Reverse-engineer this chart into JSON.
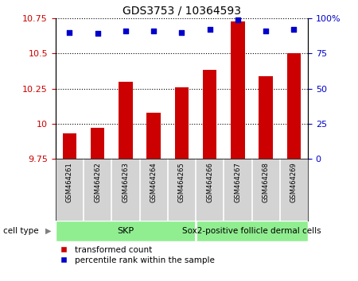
{
  "title": "GDS3753 / 10364593",
  "samples": [
    "GSM464261",
    "GSM464262",
    "GSM464263",
    "GSM464264",
    "GSM464265",
    "GSM464266",
    "GSM464267",
    "GSM464268",
    "GSM464269"
  ],
  "transformed_counts": [
    9.93,
    9.97,
    10.3,
    10.08,
    10.26,
    10.38,
    10.73,
    10.34,
    10.5
  ],
  "percentile_ranks": [
    90,
    89,
    91,
    91,
    90,
    92,
    99,
    91,
    92
  ],
  "ylim_left": [
    9.75,
    10.75
  ],
  "ylim_right": [
    0,
    100
  ],
  "yticks_left": [
    9.75,
    10.0,
    10.25,
    10.5,
    10.75
  ],
  "ytick_labels_left": [
    "9.75",
    "10",
    "10.25",
    "10.5",
    "10.75"
  ],
  "yticks_right": [
    0,
    25,
    50,
    75,
    100
  ],
  "ytick_labels_right": [
    "0",
    "25",
    "50",
    "75",
    "100%"
  ],
  "bar_color": "#cc0000",
  "dot_color": "#0000cc",
  "skp_count": 5,
  "sox2_count": 4,
  "skp_label": "SKP",
  "sox2_label": "Sox2-positive follicle dermal cells",
  "group_color": "#90EE90",
  "cell_type_label": "cell type",
  "legend_label_count": "transformed count",
  "legend_label_pct": "percentile rank within the sample",
  "grid_color": "#000000",
  "left_tick_color": "#cc0000",
  "right_tick_color": "#0000cc",
  "sample_bg_color": "#d3d3d3",
  "bar_width": 0.5
}
